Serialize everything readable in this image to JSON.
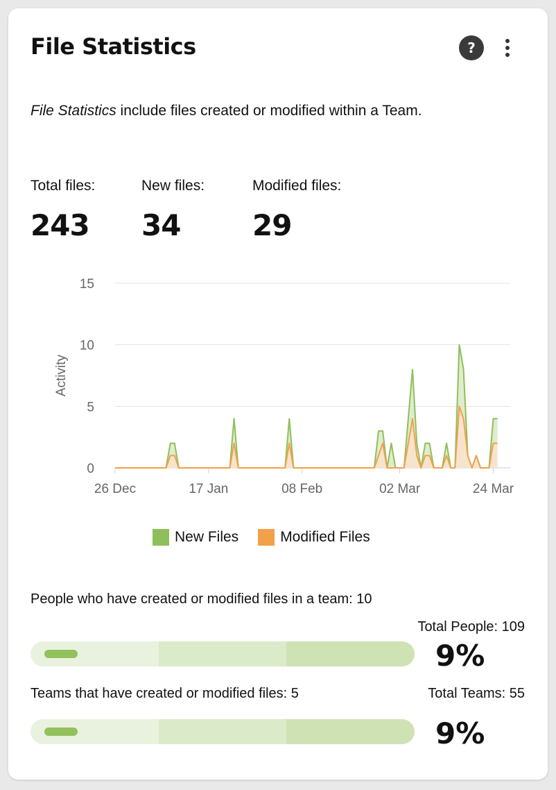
{
  "header": {
    "title": "File Statistics",
    "help_icon": "question-circle-icon",
    "menu_icon": "kebab-menu-icon"
  },
  "description": {
    "emphasis": "File Statistics",
    "rest": " include files created or modified within a Team."
  },
  "stats": [
    {
      "label": "Total files:",
      "value": "243"
    },
    {
      "label": "New files:",
      "value": "34"
    },
    {
      "label": "Modified files:",
      "value": "29"
    }
  ],
  "chart_data": {
    "type": "area",
    "ylabel": "Activity",
    "xlabel": "",
    "ylim": [
      0,
      15
    ],
    "yticks": [
      0,
      5,
      10,
      15
    ],
    "xlim": [
      "2023-12-26",
      "2024-03-28"
    ],
    "xticks": [
      {
        "date": "2023-12-26",
        "label": "26 Dec"
      },
      {
        "date": "2024-01-17",
        "label": "17 Jan"
      },
      {
        "date": "2024-02-08",
        "label": "08 Feb"
      },
      {
        "date": "2024-03-02",
        "label": "02 Mar"
      },
      {
        "date": "2024-03-24",
        "label": "24 Mar"
      }
    ],
    "grid": true,
    "legend_position": "bottom",
    "series": [
      {
        "name": "New Files",
        "color": "#8fbf5a",
        "fill": "#d9e9c6",
        "points": [
          [
            "2023-12-26",
            0
          ],
          [
            "2024-01-07",
            0
          ],
          [
            "2024-01-08",
            2
          ],
          [
            "2024-01-09",
            2
          ],
          [
            "2024-01-10",
            0
          ],
          [
            "2024-01-22",
            0
          ],
          [
            "2024-01-23",
            4
          ],
          [
            "2024-01-24",
            0
          ],
          [
            "2024-02-04",
            0
          ],
          [
            "2024-02-05",
            4
          ],
          [
            "2024-02-06",
            0
          ],
          [
            "2024-02-25",
            0
          ],
          [
            "2024-02-26",
            3
          ],
          [
            "2024-02-27",
            3
          ],
          [
            "2024-02-28",
            0
          ],
          [
            "2024-02-29",
            2
          ],
          [
            "2024-03-01",
            0
          ],
          [
            "2024-03-03",
            0
          ],
          [
            "2024-03-05",
            8
          ],
          [
            "2024-03-06",
            2
          ],
          [
            "2024-03-07",
            0
          ],
          [
            "2024-03-08",
            2
          ],
          [
            "2024-03-09",
            2
          ],
          [
            "2024-03-10",
            0
          ],
          [
            "2024-03-12",
            0
          ],
          [
            "2024-03-13",
            2
          ],
          [
            "2024-03-14",
            0
          ],
          [
            "2024-03-15",
            0
          ],
          [
            "2024-03-16",
            10
          ],
          [
            "2024-03-17",
            8
          ],
          [
            "2024-03-18",
            1
          ],
          [
            "2024-03-19",
            0
          ],
          [
            "2024-03-20",
            1
          ],
          [
            "2024-03-21",
            0
          ],
          [
            "2024-03-23",
            0
          ],
          [
            "2024-03-24",
            4
          ],
          [
            "2024-03-25",
            4
          ]
        ]
      },
      {
        "name": "Modified Files",
        "color": "#f2a04a",
        "fill": "#fbe3cc",
        "points": [
          [
            "2023-12-26",
            0
          ],
          [
            "2024-01-07",
            0
          ],
          [
            "2024-01-08",
            1
          ],
          [
            "2024-01-09",
            1
          ],
          [
            "2024-01-10",
            0
          ],
          [
            "2024-01-22",
            0
          ],
          [
            "2024-01-23",
            2
          ],
          [
            "2024-01-24",
            0
          ],
          [
            "2024-02-04",
            0
          ],
          [
            "2024-02-05",
            2
          ],
          [
            "2024-02-06",
            0
          ],
          [
            "2024-02-25",
            0
          ],
          [
            "2024-02-27",
            2
          ],
          [
            "2024-02-28",
            0
          ],
          [
            "2024-03-01",
            0
          ],
          [
            "2024-03-03",
            0
          ],
          [
            "2024-03-05",
            4
          ],
          [
            "2024-03-06",
            1
          ],
          [
            "2024-03-07",
            0
          ],
          [
            "2024-03-08",
            1
          ],
          [
            "2024-03-09",
            1
          ],
          [
            "2024-03-10",
            0
          ],
          [
            "2024-03-12",
            0
          ],
          [
            "2024-03-13",
            1
          ],
          [
            "2024-03-14",
            0
          ],
          [
            "2024-03-15",
            0
          ],
          [
            "2024-03-16",
            5
          ],
          [
            "2024-03-17",
            4
          ],
          [
            "2024-03-18",
            1
          ],
          [
            "2024-03-19",
            0
          ],
          [
            "2024-03-20",
            1
          ],
          [
            "2024-03-21",
            0
          ],
          [
            "2024-03-23",
            0
          ],
          [
            "2024-03-24",
            2
          ],
          [
            "2024-03-25",
            2
          ]
        ]
      }
    ]
  },
  "legend": [
    {
      "label": "New Files",
      "color": "#8fbf5a"
    },
    {
      "label": "Modified Files",
      "color": "#f2a04a"
    }
  ],
  "people": {
    "line": "People who have created or modified files in a team: 10",
    "total": "Total People: 109",
    "percent": "9%",
    "fraction": 0.09
  },
  "teams": {
    "line": "Teams that have created or modified files: 5",
    "total": "Total Teams: 55",
    "percent": "9%",
    "fraction": 0.09
  },
  "bar_colors": [
    "#e9f2df",
    "#dbeac8",
    "#cfe2b4"
  ]
}
